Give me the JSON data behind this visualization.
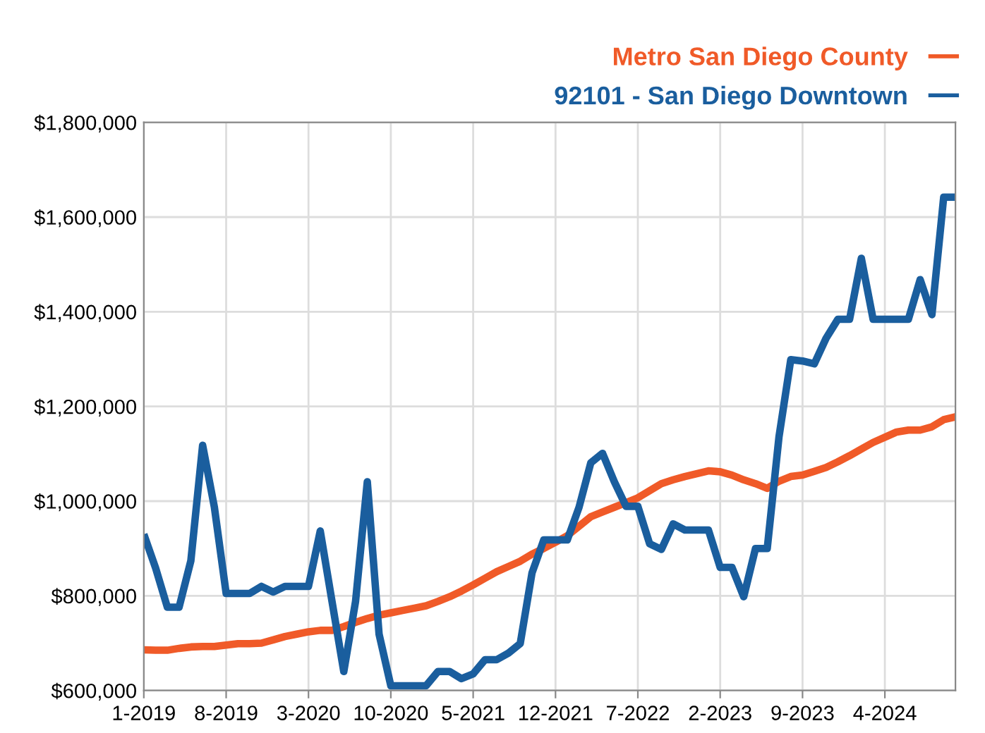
{
  "chart_data": {
    "type": "line",
    "categories": [
      "1-2019",
      null,
      null,
      null,
      null,
      null,
      null,
      "8-2019",
      null,
      null,
      null,
      null,
      null,
      null,
      "3-2020",
      null,
      null,
      null,
      null,
      null,
      null,
      "10-2020",
      null,
      null,
      null,
      null,
      null,
      null,
      "5-2021",
      null,
      null,
      null,
      null,
      null,
      null,
      "12-2021",
      null,
      null,
      null,
      null,
      null,
      null,
      "7-2022",
      null,
      null,
      null,
      null,
      null,
      null,
      "2-2023",
      null,
      null,
      null,
      null,
      null,
      null,
      "9-2023",
      null,
      null,
      null,
      null,
      null,
      null,
      "4-2024",
      null,
      null,
      null,
      null,
      null,
      null
    ],
    "series": [
      {
        "name": "Metro San Diego County",
        "color": "#f05a28",
        "values": [
          686000,
          685000,
          685000,
          689000,
          692000,
          693000,
          693000,
          696000,
          699000,
          699000,
          700000,
          707000,
          714000,
          719000,
          724000,
          727000,
          727000,
          735000,
          744000,
          752000,
          759000,
          764000,
          769000,
          774000,
          779000,
          788000,
          798000,
          810000,
          823000,
          837000,
          851000,
          862000,
          873000,
          888000,
          900000,
          913000,
          927000,
          947000,
          967000,
          977000,
          987000,
          997000,
          1007000,
          1022000,
          1037000,
          1045000,
          1052000,
          1058000,
          1064000,
          1062000,
          1055000,
          1045000,
          1037000,
          1027000,
          1042000,
          1052000,
          1055000,
          1063000,
          1071000,
          1083000,
          1096000,
          1110000,
          1124000,
          1135000,
          1146000,
          1150000,
          1150000,
          1157000,
          1172000,
          1178000
        ]
      },
      {
        "name": "92101 - San Diego Downtown",
        "color": "#1a5e9e",
        "values": [
          930000,
          859000,
          776000,
          776000,
          874000,
          1118000,
          987000,
          805000,
          805000,
          805000,
          820000,
          808000,
          820000,
          820000,
          820000,
          937000,
          788000,
          640000,
          788000,
          1041000,
          719000,
          610000,
          610000,
          610000,
          610000,
          640000,
          640000,
          625000,
          635000,
          665000,
          665000,
          679000,
          699000,
          848000,
          918000,
          918000,
          918000,
          987000,
          1081000,
          1101000,
          1041000,
          989000,
          989000,
          910000,
          898000,
          952000,
          939000,
          939000,
          939000,
          860000,
          860000,
          798000,
          900000,
          900000,
          1136000,
          1299000,
          1296000,
          1290000,
          1344000,
          1384000,
          1384000,
          1513000,
          1384000,
          1384000,
          1384000,
          1384000,
          1468000,
          1394000,
          1642000,
          1642000
        ]
      }
    ],
    "ylim": [
      600000,
      1800000
    ],
    "yticks": [
      {
        "value": 600000,
        "label": "$600,000"
      },
      {
        "value": 800000,
        "label": "$800,000"
      },
      {
        "value": 1000000,
        "label": "$1,000,000"
      },
      {
        "value": 1200000,
        "label": "$1,200,000"
      },
      {
        "value": 1400000,
        "label": "$1,400,000"
      },
      {
        "value": 1600000,
        "label": "$1,600,000"
      },
      {
        "value": 1800000,
        "label": "$1,800,000"
      }
    ],
    "grid": true,
    "legend": "top right",
    "marker": "none",
    "line_style": "solid"
  }
}
